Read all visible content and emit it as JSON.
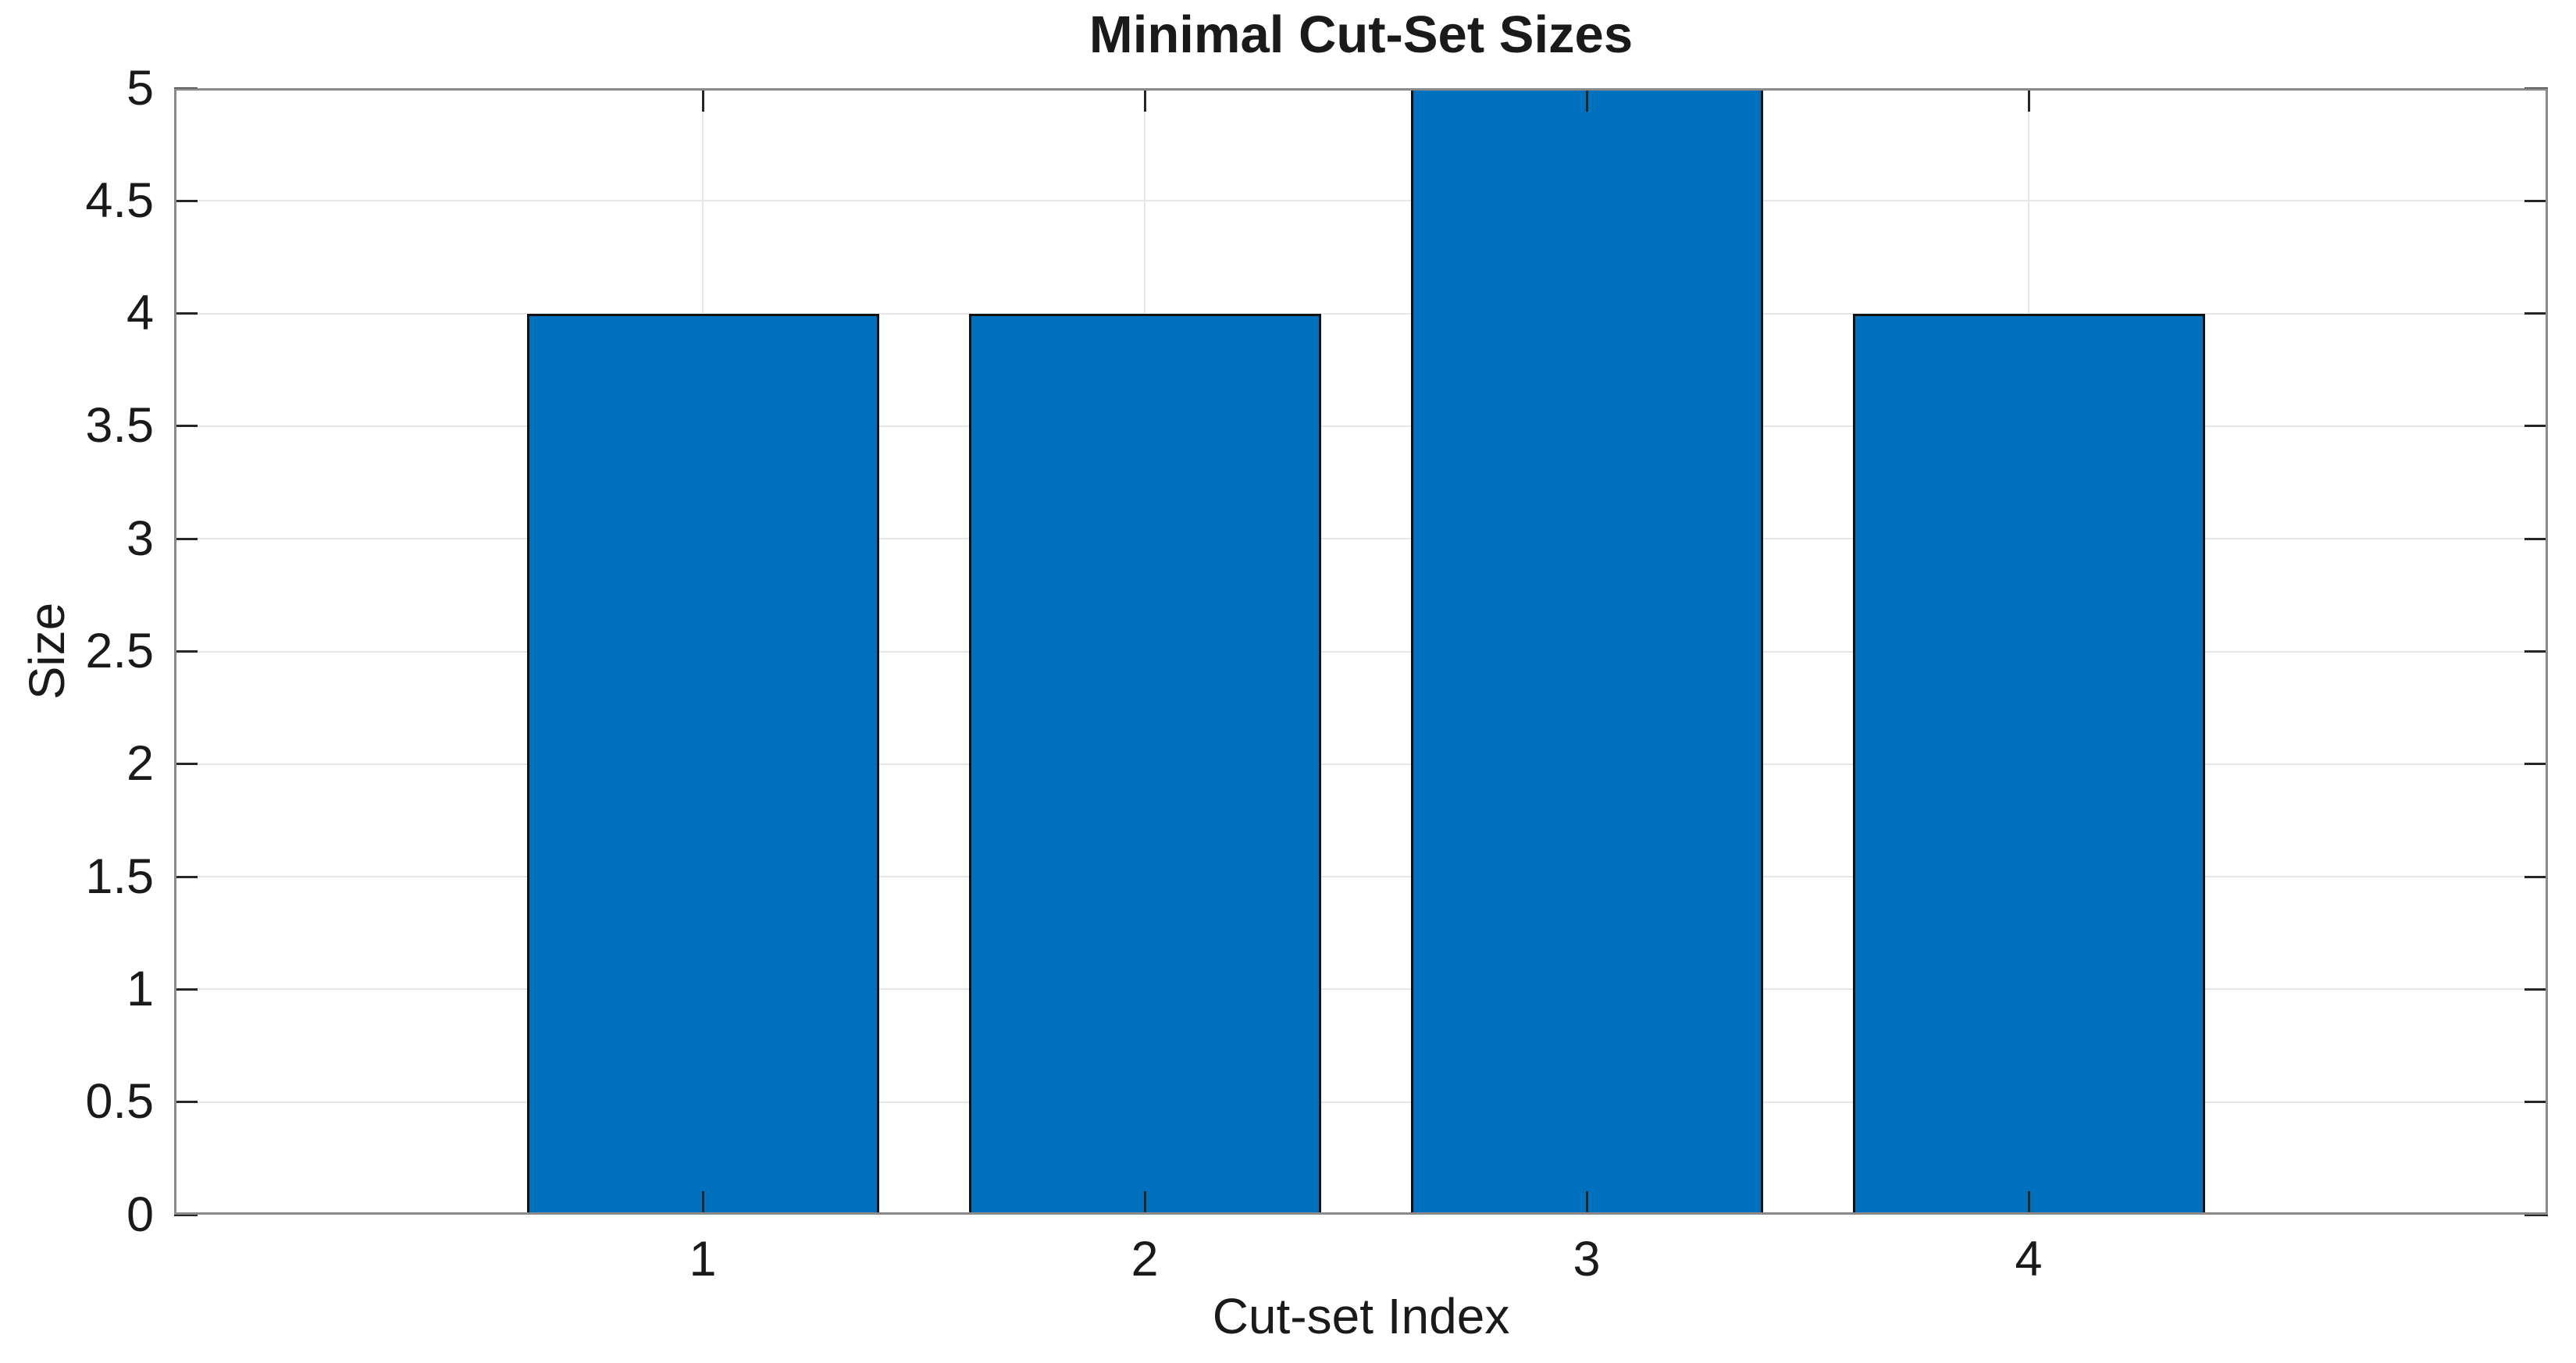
{
  "chart_data": {
    "type": "bar",
    "title": "Minimal Cut-Set Sizes",
    "xlabel": "Cut-set Index",
    "ylabel": "Size",
    "categories": [
      "1",
      "2",
      "3",
      "4"
    ],
    "values": [
      4,
      4,
      5,
      4
    ],
    "ylim": [
      0,
      5
    ],
    "ytick_step": 0.5,
    "ytick_labels": [
      "0",
      "0.5",
      "1",
      "1.5",
      "2",
      "2.5",
      "3",
      "3.5",
      "4",
      "4.5",
      "5"
    ],
    "grid": true,
    "bar_width_ratio": 0.8,
    "legend": "none",
    "colors": {
      "bar_fill": "#0072BD",
      "bar_edge": "#111111",
      "grid": "#e7e7e7",
      "axis_box": "#8a8a8a",
      "tick": "#262626",
      "text": "#1a1a1a",
      "background": "#ffffff"
    }
  }
}
